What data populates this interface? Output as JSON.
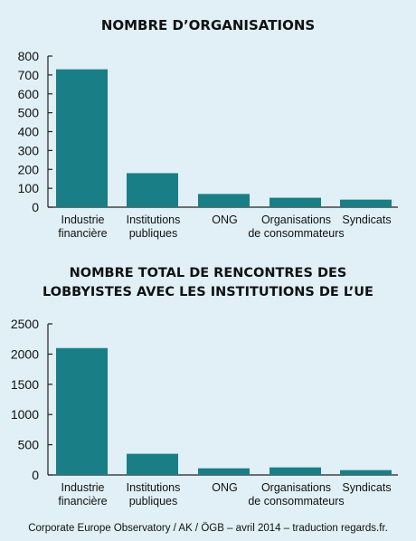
{
  "chart_data": [
    {
      "type": "bar",
      "title": "NOMBRE D’ORGANISATIONS",
      "categories": [
        [
          "Industrie",
          "financière"
        ],
        [
          "Institutions",
          "publiques"
        ],
        [
          "ONG"
        ],
        [
          "Organisations",
          "de consommateurs"
        ],
        [
          "Syndicats"
        ]
      ],
      "values": [
        730,
        180,
        70,
        50,
        40
      ],
      "ylim": [
        0,
        800
      ],
      "yticks": [
        0,
        100,
        200,
        300,
        400,
        500,
        600,
        700,
        800
      ],
      "grid": false,
      "bar_color": "#1a7e86"
    },
    {
      "type": "bar",
      "title": [
        "NOMBRE TOTAL DE RENCONTRES DES",
        "LOBBYISTES AVEC LES INSTITUTIONS DE L’UE"
      ],
      "categories": [
        [
          "Industrie",
          "financière"
        ],
        [
          "Institutions",
          "publiques"
        ],
        [
          "ONG"
        ],
        [
          "Organisations",
          "de consommateurs"
        ],
        [
          "Syndicats"
        ]
      ],
      "values": [
        2100,
        350,
        110,
        125,
        80
      ],
      "ylim": [
        0,
        2500
      ],
      "yticks": [
        0,
        500,
        1000,
        1500,
        2000,
        2500
      ],
      "grid": false,
      "bar_color": "#1a7e86"
    }
  ],
  "footer": "Corporate Europe Observatory / AK / ÖGB – avril 2014 – traduction regards.fr."
}
